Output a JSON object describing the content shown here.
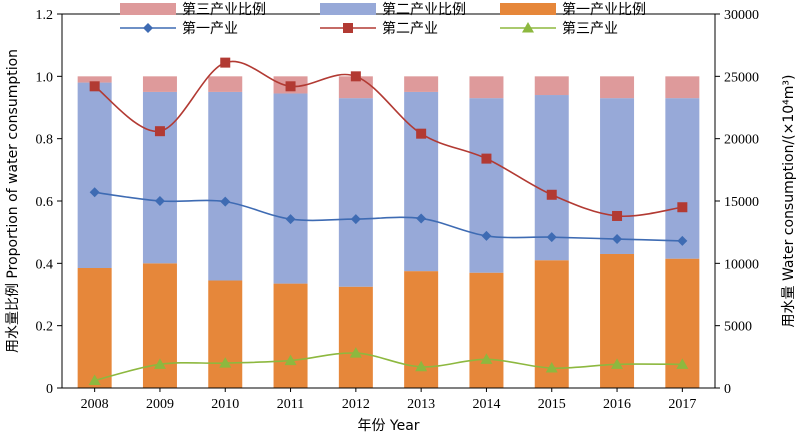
{
  "chart_data": {
    "type": "bar",
    "categories": [
      "2008",
      "2009",
      "2010",
      "2011",
      "2012",
      "2013",
      "2014",
      "2015",
      "2016",
      "2017"
    ],
    "xlabel": "年份 Year",
    "ylabel_left": "用水量比例 Proportion of water consumption",
    "ylabel_right": "用水量 Water consumption/(×10⁴m³)",
    "ylim_left": [
      0,
      1.2
    ],
    "ylim_right": [
      0,
      30000
    ],
    "yticks_left": [
      "0",
      "0.2",
      "0.4",
      "0.6",
      "0.8",
      "1.0",
      "1.2"
    ],
    "yticks_right": [
      "0",
      "5000",
      "10000",
      "15000",
      "20000",
      "25000",
      "30000"
    ],
    "stacked_bars": [
      {
        "name": "第一产业比例",
        "color": "#e6873a",
        "values": [
          0.385,
          0.4,
          0.345,
          0.335,
          0.325,
          0.375,
          0.37,
          0.41,
          0.43,
          0.415
        ]
      },
      {
        "name": "第二产业比例",
        "color": "#97a9d8",
        "values": [
          0.595,
          0.55,
          0.605,
          0.61,
          0.605,
          0.575,
          0.56,
          0.53,
          0.5,
          0.515
        ]
      },
      {
        "name": "第三产业比例",
        "color": "#de9a9b",
        "values": [
          0.02,
          0.05,
          0.05,
          0.055,
          0.07,
          0.05,
          0.07,
          0.06,
          0.07,
          0.07
        ]
      }
    ],
    "line_series": [
      {
        "name": "第一产业",
        "color": "#3e6bb3",
        "marker": "diamond",
        "values": [
          15700,
          15000,
          14950,
          13550,
          13550,
          13600,
          12200,
          12100,
          11950,
          11800
        ]
      },
      {
        "name": "第二产业",
        "color": "#b23a33",
        "marker": "square",
        "values": [
          24200,
          20600,
          26100,
          24200,
          25000,
          20400,
          18400,
          15500,
          13800,
          14500
        ]
      },
      {
        "name": "第三产业",
        "color": "#8db83f",
        "marker": "triangle",
        "values": [
          600,
          1900,
          2000,
          2200,
          2800,
          1700,
          2300,
          1600,
          1900,
          1900
        ]
      }
    ],
    "legend_position": "top"
  }
}
